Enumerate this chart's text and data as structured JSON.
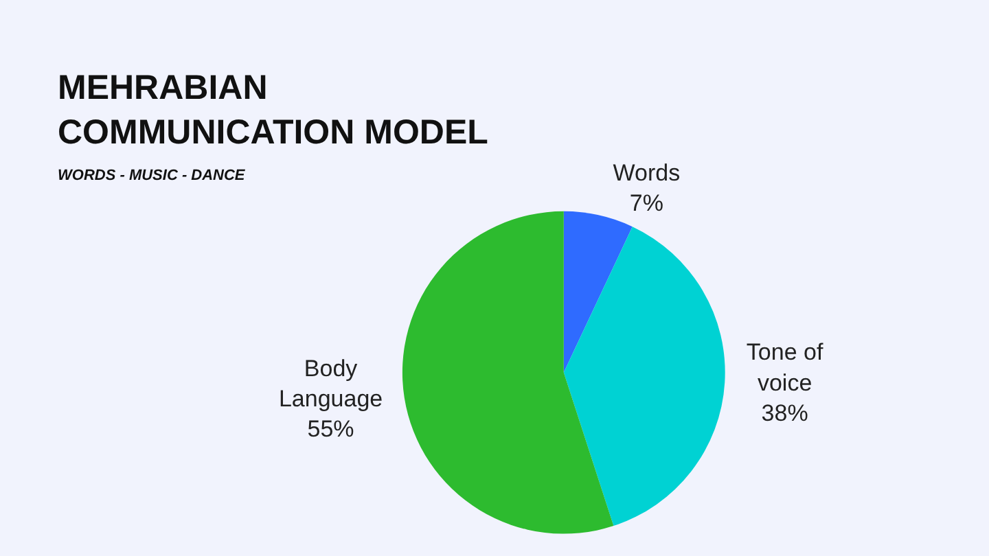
{
  "chart_data": {
    "type": "pie",
    "title": "MEHRABIAN\nCOMMUNICATION MODEL",
    "subtitle": "WORDS - MUSIC - DANCE",
    "categories": [
      "Words",
      "Tone of voice",
      "Body Language"
    ],
    "values": [
      7,
      38,
      55
    ],
    "value_labels": [
      "7%",
      "38%",
      "55%"
    ],
    "colors": [
      "#2f6bff",
      "#00d2d3",
      "#2dbb2f"
    ],
    "legend": false
  }
}
